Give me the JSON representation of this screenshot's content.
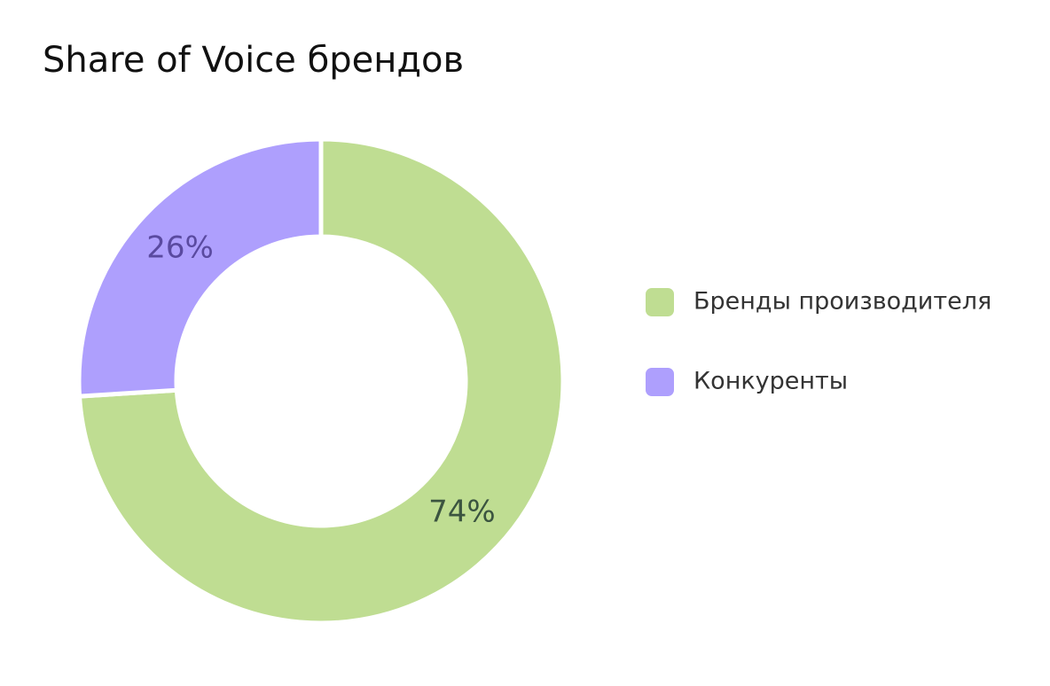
{
  "chart_data": {
    "type": "donut",
    "title": "Share of Voice брендов",
    "categories": [
      "Бренды производителя",
      "Конкуренты"
    ],
    "values": [
      74,
      26
    ],
    "value_labels": [
      "74%",
      "26%"
    ],
    "colors": [
      "#bfdd92",
      "#ae9ffd"
    ],
    "label_colors": [
      "#3b5440",
      "#5a4aa0"
    ],
    "legend": "right"
  }
}
